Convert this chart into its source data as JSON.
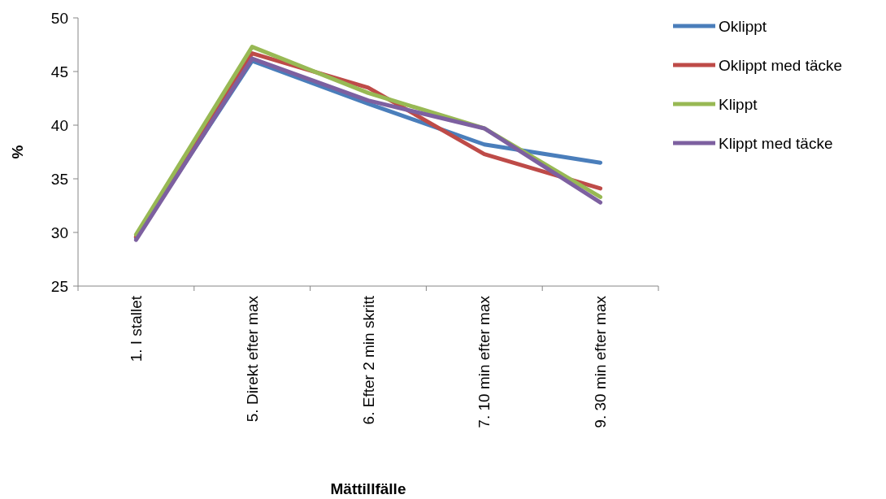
{
  "chart_data": {
    "type": "line",
    "xlabel": "Mättillfälle",
    "ylabel": "%",
    "categories": [
      "1. I stallet",
      "5. Direkt efter max",
      "6. Efter 2 min skritt",
      "7. 10 min efter max",
      "9. 30 min efter max"
    ],
    "ylim": [
      25,
      50
    ],
    "yticks": [
      25,
      30,
      35,
      40,
      45,
      50
    ],
    "legend": "right",
    "grid": false,
    "marker": "none",
    "line_style": "solid",
    "series": [
      {
        "name": "Oklippt",
        "color": "#4a7ebb",
        "values": [
          29.5,
          46.0,
          42.0,
          38.2,
          36.5
        ]
      },
      {
        "name": "Oklippt med täcke",
        "color": "#be4b48",
        "values": [
          29.6,
          46.7,
          43.5,
          37.3,
          34.1
        ]
      },
      {
        "name": "Klippt",
        "color": "#98b954",
        "values": [
          29.8,
          47.3,
          43.0,
          39.7,
          33.3
        ]
      },
      {
        "name": "Klippt med täcke",
        "color": "#7d60a0",
        "values": [
          29.3,
          46.2,
          42.3,
          39.7,
          32.8
        ]
      }
    ]
  }
}
